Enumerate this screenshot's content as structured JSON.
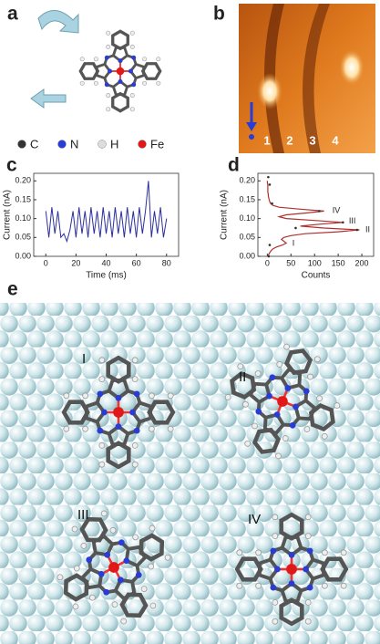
{
  "panels": {
    "a": {
      "label": "a",
      "legend": [
        "C",
        "N",
        "H",
        "Fe"
      ]
    },
    "b": {
      "label": "b",
      "markers": [
        "1",
        "2",
        "3",
        "4"
      ]
    },
    "e": {
      "label": "e",
      "molecules": [
        "I",
        "II",
        "III",
        "IV"
      ]
    }
  },
  "chart_data": [
    {
      "type": "line",
      "label": "c",
      "x_label": "Time (ms)",
      "y_label": "Current (nA)",
      "xlim": [
        -8,
        88
      ],
      "xticks": [
        0,
        20,
        40,
        60,
        80
      ],
      "ylim": [
        0,
        0.22
      ],
      "yticks": [
        {
          "value": 0,
          "label": "0.00"
        },
        0.05,
        {
          "value": 0.1,
          "label": "0.10"
        },
        0.15,
        {
          "value": 0.2,
          "label": "0.20"
        }
      ],
      "x": [
        0,
        2,
        4,
        6,
        8,
        10,
        12,
        14,
        16,
        18,
        20,
        22,
        24,
        26,
        28,
        30,
        32,
        34,
        36,
        38,
        40,
        42,
        44,
        46,
        48,
        50,
        52,
        54,
        56,
        58,
        60,
        62,
        64,
        66,
        68,
        70,
        72,
        74,
        76,
        78,
        80
      ],
      "series": [
        {
          "color": "#2b2f9e",
          "values": [
            0.12,
            0.05,
            0.13,
            0.06,
            0.12,
            0.05,
            0.06,
            0.04,
            0.07,
            0.12,
            0.05,
            0.13,
            0.06,
            0.12,
            0.05,
            0.13,
            0.06,
            0.12,
            0.05,
            0.13,
            0.06,
            0.12,
            0.05,
            0.13,
            0.06,
            0.12,
            0.05,
            0.13,
            0.06,
            0.12,
            0.05,
            0.13,
            0.06,
            0.12,
            0.2,
            0.05,
            0.12,
            0.06,
            0.13,
            0.05,
            0.1
          ]
        }
      ]
    },
    {
      "type": "line",
      "label": "d",
      "x_label": "Counts",
      "y_label": "Current (nA)",
      "xlim": [
        -20,
        225
      ],
      "xticks": [
        0,
        50,
        100,
        150,
        200
      ],
      "ylim": [
        0,
        0.22
      ],
      "yticks": [
        {
          "value": 0,
          "label": "0.00"
        },
        0.05,
        {
          "value": 0.1,
          "label": "0.10"
        },
        0.15,
        {
          "value": 0.2,
          "label": "0.20"
        }
      ],
      "series": [
        {
          "type": "line",
          "color": "#b03030",
          "x": [
            2,
            3,
            5,
            8,
            12,
            20,
            32,
            40,
            35,
            30,
            35,
            50,
            80,
            150,
            195,
            120,
            70,
            110,
            160,
            100,
            40,
            25,
            40,
            85,
            120,
            70,
            25,
            12,
            7,
            5,
            4,
            3,
            2,
            2,
            1,
            1,
            1,
            1,
            1,
            0,
            0
          ],
          "values": [
            0,
            0.005,
            0.01,
            0.015,
            0.02,
            0.025,
            0.03,
            0.035,
            0.04,
            0.045,
            0.05,
            0.055,
            0.06,
            0.065,
            0.07,
            0.075,
            0.08,
            0.085,
            0.09,
            0.095,
            0.1,
            0.105,
            0.11,
            0.115,
            0.12,
            0.125,
            0.13,
            0.135,
            0.14,
            0.145,
            0.15,
            0.155,
            0.16,
            0.165,
            0.17,
            0.175,
            0.18,
            0.185,
            0.19,
            0.195,
            0.2
          ]
        },
        {
          "type": "scatter",
          "color": "#333333",
          "x": [
            2,
            5,
            10,
            60,
            190,
            160,
            110,
            5,
            3
          ],
          "values": [
            0.21,
            0.19,
            0.14,
            0.075,
            0.07,
            0.09,
            0.12,
            0.03,
            0
          ]
        }
      ],
      "annotations": [
        {
          "text": "IV",
          "x": 130,
          "y": 0.12
        },
        {
          "text": "III",
          "x": 165,
          "y": 0.093
        },
        {
          "text": "II",
          "x": 200,
          "y": 0.07
        },
        {
          "text": "I",
          "x": 45,
          "y": 0.033
        }
      ]
    }
  ]
}
